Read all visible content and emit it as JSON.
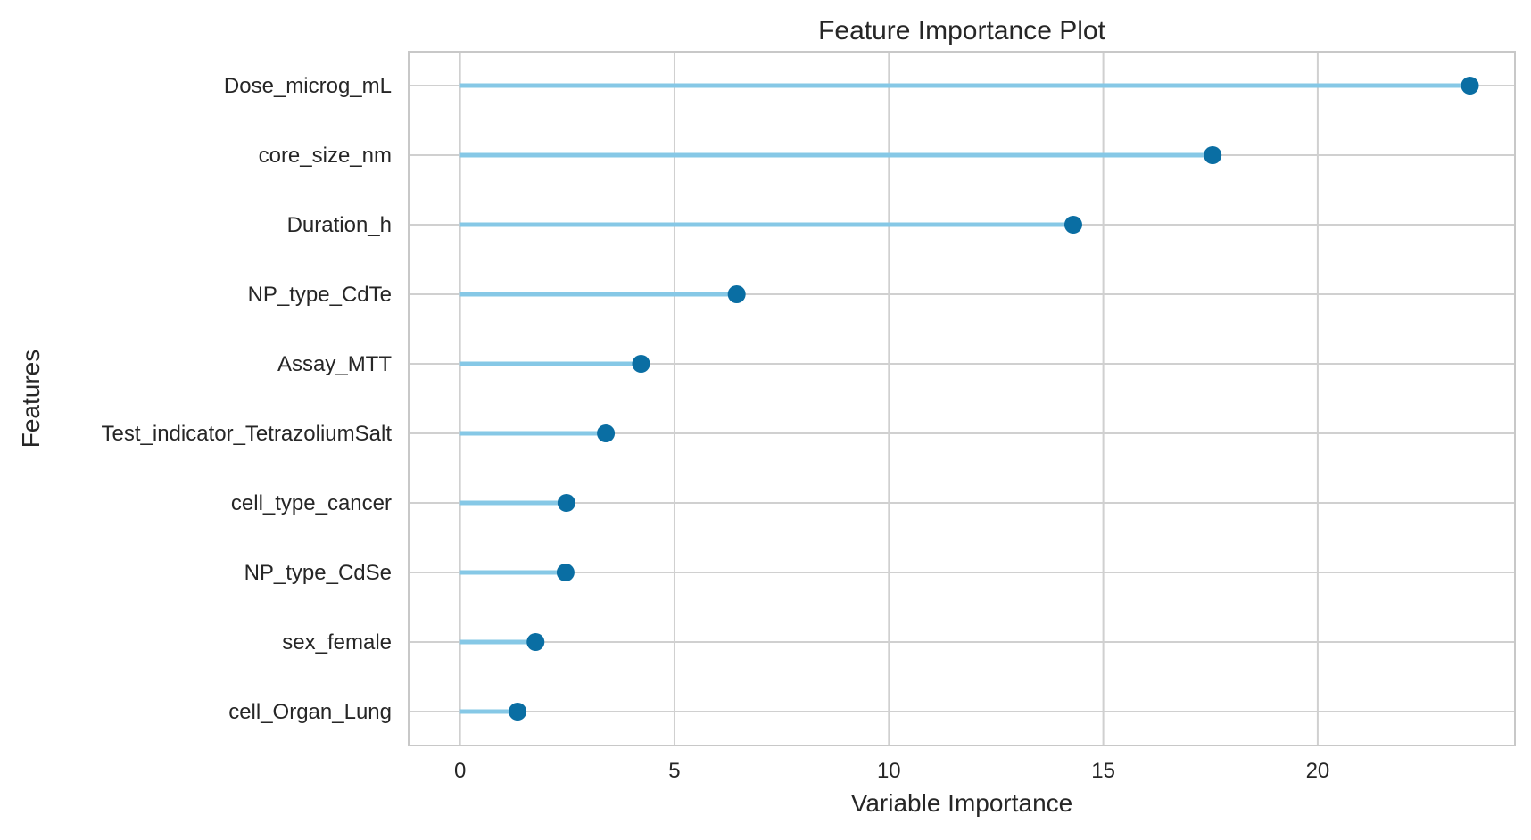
{
  "chart_data": {
    "type": "lollipop",
    "orientation": "horizontal",
    "title": "Feature Importance Plot",
    "xlabel": "Variable Importance",
    "ylabel": "Features",
    "xlim": [
      -1.2,
      24.6
    ],
    "xticks": [
      0,
      5,
      10,
      15,
      20
    ],
    "grid": true,
    "legend": "none",
    "colors": {
      "stem": "#86c8e6",
      "marker": "#0a6ea3",
      "grid": "#d0d0d0",
      "spine": "#c8c8c8"
    },
    "categories": [
      "Dose_microg_mL",
      "core_size_nm",
      "Duration_h",
      "NP_type_CdTe",
      "Assay_MTT",
      "Test_indicator_TetrazoliumSalt",
      "cell_type_cancer",
      "NP_type_CdSe",
      "sex_female",
      "cell_Organ_Lung"
    ],
    "values": [
      23.55,
      17.55,
      14.3,
      6.45,
      4.22,
      3.4,
      2.48,
      2.46,
      1.76,
      1.34
    ]
  }
}
